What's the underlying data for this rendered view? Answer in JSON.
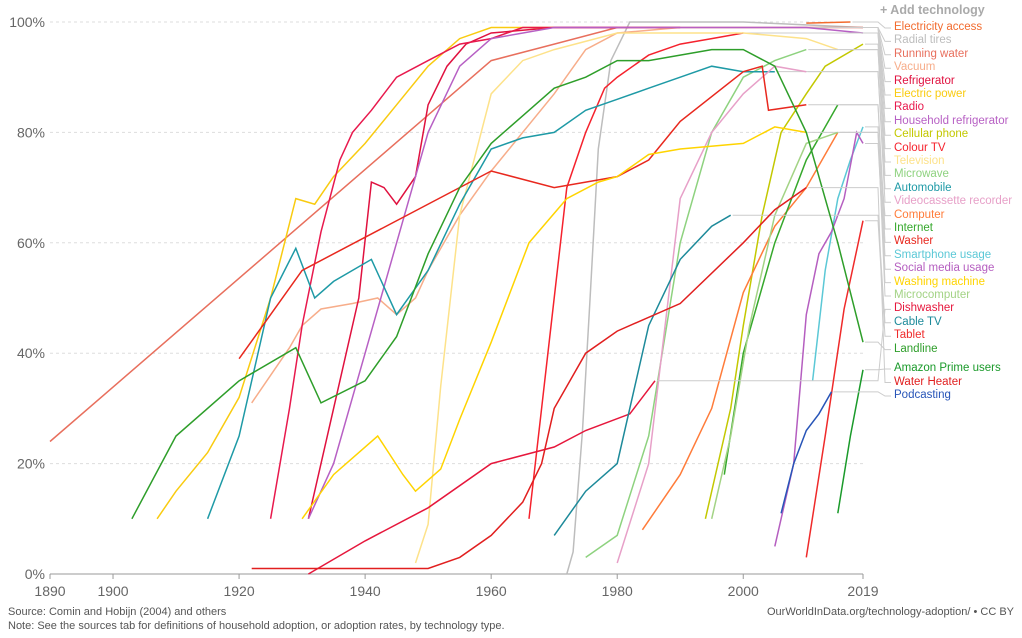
{
  "add_technology": "+ Add technology",
  "footer": {
    "source": "Source: Comin and Hobijn (2004) and others",
    "note": "Note: See the sources tab for definitions of household adoption, or adoption rates, by technology type.",
    "credit": "OurWorldInData.org/technology-adoption/ • CC BY"
  },
  "chart_data": {
    "type": "line",
    "xlim": [
      1890,
      2019
    ],
    "ylim": [
      0,
      100
    ],
    "x_ticks": [
      "1890",
      "1900",
      "1920",
      "1940",
      "1960",
      "1980",
      "2000",
      "2019"
    ],
    "y_ticks": [
      "0%",
      "20%",
      "40%",
      "60%",
      "80%",
      "100%"
    ],
    "grid": true,
    "legend": "right",
    "series": [
      {
        "name": "Electricity access",
        "color": "#f26b2e",
        "points": [
          [
            2010,
            99.8
          ],
          [
            2017,
            100
          ]
        ]
      },
      {
        "name": "Radial tires",
        "color": "#bdbdbd",
        "points": [
          [
            1972,
            0
          ],
          [
            1973,
            4
          ],
          [
            1974.5,
            26
          ],
          [
            1975.7,
            50
          ],
          [
            1977,
            77
          ],
          [
            1979,
            93
          ],
          [
            1982,
            100
          ],
          [
            2000,
            100
          ],
          [
            2019,
            99
          ]
        ]
      },
      {
        "name": "Running water",
        "color": "#e86f5d",
        "points": [
          [
            1890,
            24
          ],
          [
            1960,
            93
          ],
          [
            1970,
            96
          ],
          [
            1980,
            99
          ],
          [
            2000,
            99
          ],
          [
            2019,
            99
          ]
        ]
      },
      {
        "name": "Vacuum",
        "color": "#f7ad8a",
        "points": [
          [
            1922,
            31
          ],
          [
            1925,
            36
          ],
          [
            1928,
            41
          ],
          [
            1930,
            45
          ],
          [
            1933,
            48
          ],
          [
            1938,
            49
          ],
          [
            1942,
            50
          ],
          [
            1945,
            47
          ],
          [
            1948,
            50
          ],
          [
            1950,
            55
          ],
          [
            1955,
            65
          ],
          [
            1960,
            73
          ],
          [
            1965,
            80
          ],
          [
            1970,
            87
          ],
          [
            1975,
            95
          ],
          [
            1980,
            98
          ],
          [
            1990,
            99
          ]
        ]
      },
      {
        "name": "Refrigerator",
        "color": "#e0113f",
        "points": [
          [
            1931,
            10
          ],
          [
            1935,
            30
          ],
          [
            1939,
            50
          ],
          [
            1941,
            71
          ],
          [
            1943,
            70
          ],
          [
            1945,
            67
          ],
          [
            1948,
            72
          ],
          [
            1950,
            85
          ],
          [
            1953,
            92
          ],
          [
            1956,
            96
          ],
          [
            1960,
            98
          ],
          [
            1970,
            99
          ],
          [
            1990,
            99
          ]
        ]
      },
      {
        "name": "Electric power",
        "color": "#f9cb10",
        "points": [
          [
            1907,
            10
          ],
          [
            1910,
            15
          ],
          [
            1915,
            22
          ],
          [
            1920,
            32
          ],
          [
            1925,
            50
          ],
          [
            1929,
            68
          ],
          [
            1932,
            67
          ],
          [
            1935,
            72
          ],
          [
            1940,
            78
          ],
          [
            1945,
            85
          ],
          [
            1950,
            92
          ],
          [
            1955,
            97
          ],
          [
            1960,
            99
          ],
          [
            1970,
            99
          ]
        ]
      },
      {
        "name": "Radio",
        "color": "#e8194d",
        "points": [
          [
            1925,
            10
          ],
          [
            1928,
            30
          ],
          [
            1930,
            45
          ],
          [
            1933,
            62
          ],
          [
            1936,
            75
          ],
          [
            1938,
            80
          ],
          [
            1941,
            84
          ],
          [
            1945,
            90
          ],
          [
            1950,
            93
          ],
          [
            1955,
            96
          ],
          [
            1960,
            97
          ],
          [
            1965,
            99
          ],
          [
            1970,
            99
          ],
          [
            1980,
            99
          ]
        ]
      },
      {
        "name": "Household refrigerator",
        "color": "#b760c4",
        "points": [
          [
            1931,
            10
          ],
          [
            1935,
            20
          ],
          [
            1940,
            40
          ],
          [
            1945,
            60
          ],
          [
            1950,
            80
          ],
          [
            1955,
            92
          ],
          [
            1960,
            97
          ],
          [
            1970,
            99
          ],
          [
            1990,
            99
          ],
          [
            2000,
            99
          ],
          [
            2010,
            99
          ],
          [
            2019,
            98
          ]
        ]
      },
      {
        "name": "Cellular phone",
        "color": "#c3c800",
        "points": [
          [
            1994,
            10
          ],
          [
            1998,
            30
          ],
          [
            2000,
            45
          ],
          [
            2003,
            65
          ],
          [
            2006,
            80
          ],
          [
            2010,
            87
          ],
          [
            2013,
            92
          ],
          [
            2019,
            96
          ]
        ]
      },
      {
        "name": "Colour TV",
        "color": "#f5222d",
        "points": [
          [
            1966,
            10
          ],
          [
            1968,
            30
          ],
          [
            1970,
            50
          ],
          [
            1972,
            70
          ],
          [
            1975,
            80
          ],
          [
            1978,
            88
          ],
          [
            1980,
            90
          ],
          [
            1985,
            94
          ],
          [
            1990,
            96
          ],
          [
            1995,
            97
          ],
          [
            2000,
            98
          ]
        ]
      },
      {
        "name": "Television",
        "color": "#fde28a",
        "points": [
          [
            1948,
            2
          ],
          [
            1950,
            9
          ],
          [
            1952,
            34
          ],
          [
            1955,
            65
          ],
          [
            1960,
            87
          ],
          [
            1965,
            93
          ],
          [
            1970,
            95
          ],
          [
            1980,
            98
          ],
          [
            1990,
            98
          ],
          [
            2000,
            98
          ],
          [
            2010,
            97
          ],
          [
            2015,
            95
          ]
        ]
      },
      {
        "name": "Microwave",
        "color": "#8ed27f",
        "points": [
          [
            1975,
            3
          ],
          [
            1980,
            7
          ],
          [
            1985,
            25
          ],
          [
            1990,
            60
          ],
          [
            1995,
            80
          ],
          [
            2000,
            90
          ],
          [
            2005,
            93
          ],
          [
            2010,
            95
          ]
        ]
      },
      {
        "name": "Automobile",
        "color": "#1e9aa6",
        "points": [
          [
            1915,
            10
          ],
          [
            1920,
            25
          ],
          [
            1925,
            50
          ],
          [
            1929,
            59
          ],
          [
            1932,
            50
          ],
          [
            1935,
            53
          ],
          [
            1938,
            55
          ],
          [
            1941,
            57
          ],
          [
            1945,
            47
          ],
          [
            1950,
            55
          ],
          [
            1955,
            67
          ],
          [
            1960,
            77
          ],
          [
            1965,
            79
          ],
          [
            1970,
            80
          ],
          [
            1975,
            84
          ],
          [
            1980,
            86
          ],
          [
            1985,
            88
          ],
          [
            1990,
            90
          ],
          [
            1995,
            92
          ],
          [
            2000,
            91
          ],
          [
            2005,
            91
          ]
        ]
      },
      {
        "name": "Videocassette recorder",
        "color": "#e7a0c8",
        "points": [
          [
            1980,
            2
          ],
          [
            1985,
            20
          ],
          [
            1990,
            68
          ],
          [
            1995,
            80
          ],
          [
            2000,
            87
          ],
          [
            2005,
            92
          ],
          [
            2010,
            91
          ]
        ]
      },
      {
        "name": "Computer",
        "color": "#ff7c3a",
        "points": [
          [
            1984,
            8
          ],
          [
            1990,
            18
          ],
          [
            1995,
            30
          ],
          [
            2000,
            51
          ],
          [
            2005,
            63
          ],
          [
            2010,
            70
          ],
          [
            2015,
            80
          ]
        ]
      },
      {
        "name": "Internet",
        "color": "#36a82c",
        "points": [
          [
            1997,
            18
          ],
          [
            2000,
            40
          ],
          [
            2005,
            60
          ],
          [
            2010,
            75
          ],
          [
            2015,
            85
          ]
        ]
      },
      {
        "name": "Washer",
        "color": "#e8281e",
        "points": [
          [
            1920,
            39
          ],
          [
            1930,
            55
          ],
          [
            1960,
            73
          ],
          [
            1970,
            70
          ],
          [
            1980,
            72
          ],
          [
            1985,
            75
          ],
          [
            1990,
            82
          ],
          [
            2000,
            91
          ],
          [
            2003,
            92
          ],
          [
            2004,
            84
          ],
          [
            2010,
            85
          ]
        ]
      },
      {
        "name": "Smartphone usage",
        "color": "#5bc8d6",
        "points": [
          [
            2011,
            35
          ],
          [
            2013,
            55
          ],
          [
            2015,
            68
          ],
          [
            2017,
            75
          ],
          [
            2019,
            81
          ]
        ]
      },
      {
        "name": "Social media usage",
        "color": "#b55ec0",
        "points": [
          [
            2005,
            5
          ],
          [
            2008,
            20
          ],
          [
            2010,
            47
          ],
          [
            2012,
            58
          ],
          [
            2014,
            62
          ],
          [
            2016,
            68
          ],
          [
            2018,
            80
          ],
          [
            2019,
            78
          ]
        ]
      },
      {
        "name": "Washing machine",
        "color": "#ffd400",
        "points": [
          [
            1930,
            10
          ],
          [
            1935,
            18
          ],
          [
            1942,
            25
          ],
          [
            1946,
            18
          ],
          [
            1948,
            15
          ],
          [
            1952,
            19
          ],
          [
            1955,
            28
          ],
          [
            1960,
            42
          ],
          [
            1966,
            60
          ],
          [
            1972,
            68
          ],
          [
            1977,
            71
          ],
          [
            1980,
            72
          ],
          [
            1985,
            76
          ],
          [
            1990,
            77
          ],
          [
            2000,
            78
          ],
          [
            2005,
            81
          ],
          [
            2010,
            80
          ]
        ]
      },
      {
        "name": "Microcomputer",
        "color": "#a3d385",
        "points": [
          [
            1995,
            10
          ],
          [
            1998,
            25
          ],
          [
            2001,
            45
          ],
          [
            2005,
            65
          ],
          [
            2010,
            78
          ],
          [
            2015,
            80
          ]
        ]
      },
      {
        "name": "Dishwasher",
        "color": "#e6173c",
        "points": [
          [
            1931,
            0
          ],
          [
            1940,
            6
          ],
          [
            1950,
            12
          ],
          [
            1960,
            20
          ],
          [
            1970,
            23
          ],
          [
            1975,
            26
          ],
          [
            1982,
            29
          ],
          [
            1986,
            35
          ]
        ]
      },
      {
        "name": "Cable TV",
        "color": "#1d8a9a",
        "points": [
          [
            1970,
            7
          ],
          [
            1975,
            15
          ],
          [
            1980,
            20
          ],
          [
            1985,
            45
          ],
          [
            1990,
            57
          ],
          [
            1995,
            63
          ],
          [
            1998,
            65
          ]
        ]
      },
      {
        "name": "Tablet",
        "color": "#ef2a2a",
        "points": [
          [
            2010,
            3
          ],
          [
            2013,
            25
          ],
          [
            2016,
            48
          ],
          [
            2019,
            64
          ]
        ]
      },
      {
        "name": "Landline",
        "color": "#2e9e2a",
        "points": [
          [
            1903,
            10
          ],
          [
            1910,
            25
          ],
          [
            1920,
            35
          ],
          [
            1929,
            41
          ],
          [
            1933,
            31
          ],
          [
            1940,
            35
          ],
          [
            1945,
            43
          ],
          [
            1950,
            58
          ],
          [
            1955,
            70
          ],
          [
            1960,
            78
          ],
          [
            1965,
            83
          ],
          [
            1970,
            88
          ],
          [
            1975,
            90
          ],
          [
            1980,
            93
          ],
          [
            1985,
            93
          ],
          [
            1990,
            94
          ],
          [
            1995,
            95
          ],
          [
            2000,
            95
          ],
          [
            2005,
            92
          ],
          [
            2010,
            80
          ],
          [
            2015,
            60
          ],
          [
            2019,
            42
          ]
        ]
      },
      {
        "name": "Amazon Prime users",
        "color": "#1a9a2a",
        "points": [
          [
            2015,
            11
          ],
          [
            2017,
            25
          ],
          [
            2019,
            37
          ]
        ]
      },
      {
        "name": "Water Heater",
        "color": "#e11f1f",
        "points": [
          [
            1922,
            1
          ],
          [
            1930,
            1
          ],
          [
            1950,
            1
          ],
          [
            1955,
            3
          ],
          [
            1960,
            7
          ],
          [
            1965,
            13
          ],
          [
            1968,
            20
          ],
          [
            1970,
            30
          ],
          [
            1975,
            40
          ],
          [
            1980,
            44
          ],
          [
            1990,
            49
          ],
          [
            2000,
            60
          ],
          [
            2005,
            66
          ],
          [
            2010,
            70
          ]
        ]
      },
      {
        "name": "Podcasting",
        "color": "#2855b8",
        "points": [
          [
            2006,
            11
          ],
          [
            2008,
            20
          ],
          [
            2010,
            26
          ],
          [
            2012,
            29
          ],
          [
            2014,
            33
          ]
        ]
      }
    ]
  }
}
